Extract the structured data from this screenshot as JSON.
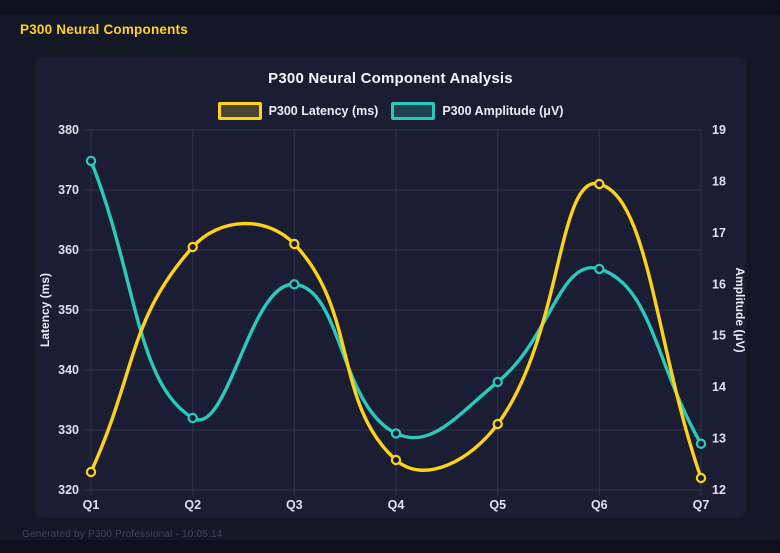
{
  "page": {
    "title": "P300 Neural Components",
    "footer": "Generated by P300 Professional - 10:05:14"
  },
  "chart": {
    "title": "P300 Neural Component Analysis"
  },
  "chart_data": {
    "type": "line",
    "categories": [
      "Q1",
      "Q2",
      "Q3",
      "Q4",
      "Q5",
      "Q6",
      "Q7"
    ],
    "series": [
      {
        "name": "P300 Latency (ms)",
        "axis": "left",
        "color": "#ffd21a",
        "values": [
          323,
          360.5,
          361,
          325,
          331,
          371,
          322
        ]
      },
      {
        "name": "P300 Amplitude (μV)",
        "axis": "right",
        "color": "#2bc9bc",
        "values": [
          18.4,
          13.4,
          16.0,
          13.1,
          14.1,
          16.3,
          12.9
        ]
      }
    ],
    "left_axis": {
      "label": "Latency (ms)",
      "min": 320,
      "max": 380,
      "ticks": [
        320,
        330,
        340,
        350,
        360,
        370,
        380
      ]
    },
    "right_axis": {
      "label": "Amplitude (μV)",
      "min": 12,
      "max": 19,
      "ticks": [
        12,
        13,
        14,
        15,
        16,
        17,
        18,
        19
      ]
    },
    "grid": true,
    "legend_position": "top",
    "line_tension": 0.45,
    "colors": {
      "background": "#141726",
      "panel": "#1b1e33",
      "grid": "#2c3147",
      "tick_text": "#dde1ec",
      "accent_yellow": "#ffd21a",
      "accent_teal": "#2bc9bc"
    }
  }
}
